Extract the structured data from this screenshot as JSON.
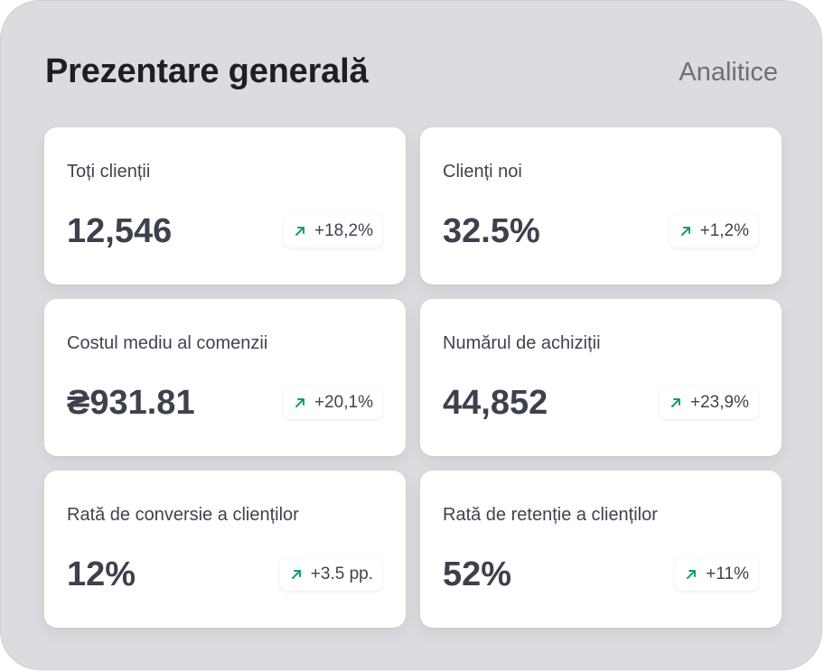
{
  "header": {
    "title": "Prezentare generală",
    "analytics_link": "Analitice"
  },
  "colors": {
    "panel_background": "#dcdbdf",
    "card_background": "#ffffff",
    "trend_up": "#0c9f73"
  },
  "cards": [
    {
      "label": "Toți clienții",
      "value": "12,546",
      "change": "+18,2%",
      "trend_icon": "arrow-up-right-icon"
    },
    {
      "label": "Clienți noi",
      "value": "32.5%",
      "change": "+1,2%",
      "trend_icon": "arrow-up-right-icon"
    },
    {
      "label": "Costul mediu al comenzii",
      "value": "₴931.81",
      "change": "+20,1%",
      "trend_icon": "arrow-up-right-icon"
    },
    {
      "label": "Numărul de achiziții",
      "value": "44,852",
      "change": "+23,9%",
      "trend_icon": "arrow-up-right-icon"
    },
    {
      "label": "Rată de conversie a clienților",
      "value": "12%",
      "change": "+3.5 pp.",
      "trend_icon": "arrow-up-right-icon"
    },
    {
      "label": "Rată de retenție a clienților",
      "value": "52%",
      "change": "+11%",
      "trend_icon": "arrow-up-right-icon"
    }
  ]
}
